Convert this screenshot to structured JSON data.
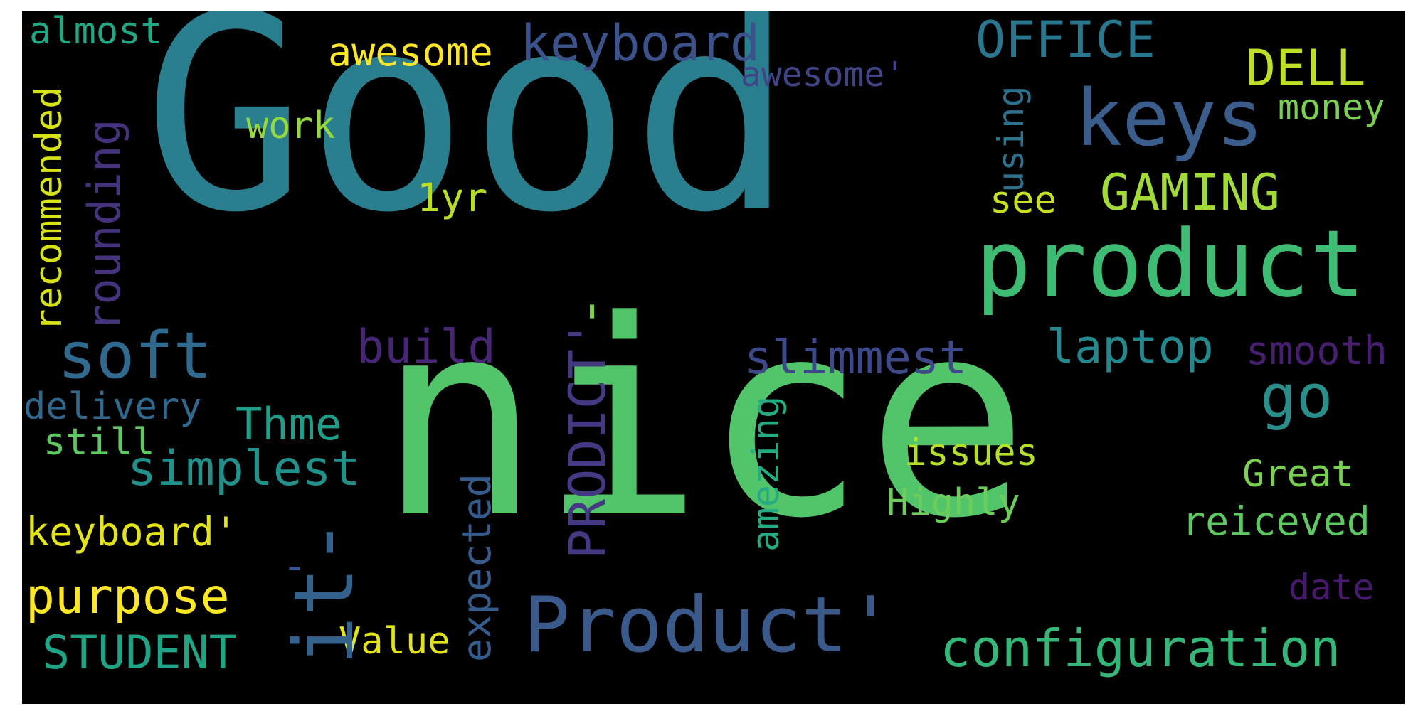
{
  "word_cloud": {
    "background": "#000000",
    "words": [
      {
        "text": "Good",
        "color": "#2a7f8e"
      },
      {
        "text": "nice",
        "color": "#52c56a"
      },
      {
        "text": "product",
        "color": "#3fbc73"
      },
      {
        "text": "Product'",
        "color": "#3b5a8c"
      },
      {
        "text": "keys",
        "color": "#3a5d8c"
      },
      {
        "text": "soft",
        "color": "#306a8e"
      },
      {
        "text": "configuration",
        "color": "#35b779"
      },
      {
        "text": "keyboard",
        "color": "#3b528b"
      },
      {
        "text": "OFFICE",
        "color": "#2a768e"
      },
      {
        "text": "DELL",
        "color": "#bddf26"
      },
      {
        "text": "GAMING",
        "color": "#a2da37"
      },
      {
        "text": "go",
        "color": "#2a8f8c"
      },
      {
        "text": "laptop",
        "color": "#23898e"
      },
      {
        "text": "slimmest",
        "color": "#3e4989"
      },
      {
        "text": "build",
        "color": "#482677"
      },
      {
        "text": "simplest",
        "color": "#21918c"
      },
      {
        "text": "purpose",
        "color": "#fde725"
      },
      {
        "text": "STUDENT",
        "color": "#20a486"
      },
      {
        "text": "Thme",
        "color": "#1f9e89"
      },
      {
        "text": "keyboard'",
        "color": "#e5e419"
      },
      {
        "text": "awesome",
        "color": "#fde725"
      },
      {
        "text": "money",
        "color": "#7ad151"
      },
      {
        "text": "smooth",
        "color": "#481f70"
      },
      {
        "text": "reiceved",
        "color": "#5ec962"
      },
      {
        "text": "Great",
        "color": "#7ad151"
      },
      {
        "text": "Highly",
        "color": "#6ccd5a"
      },
      {
        "text": "issues",
        "color": "#b5de2b"
      },
      {
        "text": "delivery",
        "color": "#31688e"
      },
      {
        "text": "still",
        "color": "#5ec962"
      },
      {
        "text": "work",
        "color": "#95d840"
      },
      {
        "text": "1yr",
        "color": "#b8de29"
      },
      {
        "text": "see",
        "color": "#c8e020"
      },
      {
        "text": "date",
        "color": "#481a6c"
      },
      {
        "text": "Value",
        "color": "#e2e418"
      },
      {
        "text": "almost",
        "color": "#22a884"
      },
      {
        "text": "awesome'",
        "color": "#414487"
      },
      {
        "text": "rounding",
        "color": "#46337e"
      },
      {
        "text": "recommended",
        "color": "#d8e219"
      },
      {
        "text": "PRODICT'",
        "color": "#443983"
      },
      {
        "text": "expected",
        "color": "#365c8d"
      },
      {
        "text": "amezing",
        "color": "#25ac82"
      },
      {
        "text": "using",
        "color": "#2c728e"
      },
      {
        "text": "it-",
        "color": "#33638d"
      },
      {
        "text": "-",
        "color": "#3a548c"
      },
      {
        "text": "'",
        "color": "#7fd34e"
      }
    ]
  }
}
